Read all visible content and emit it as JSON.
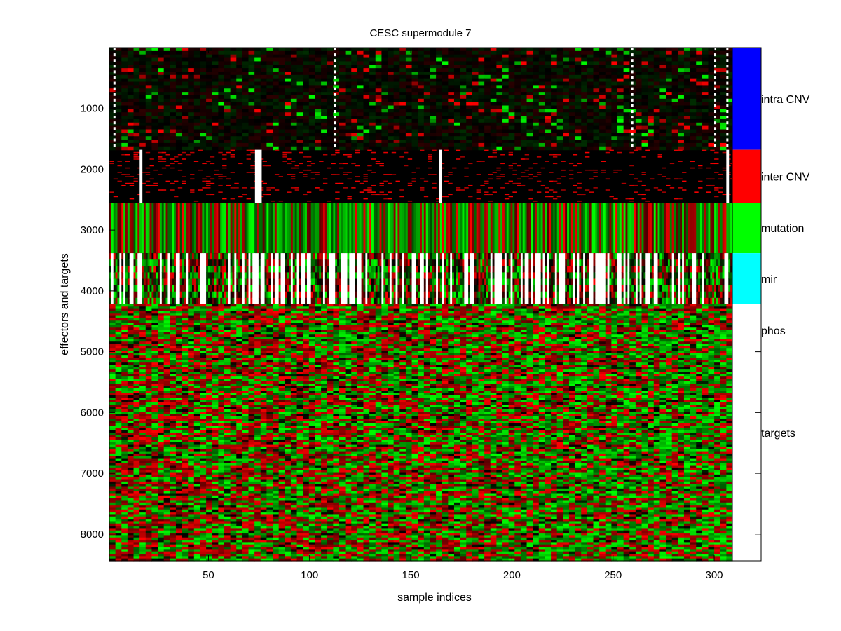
{
  "chart_data": {
    "type": "heatmap",
    "title": "CESC supermodule 7",
    "xlabel": "sample indices",
    "ylabel": "effectors and targets",
    "xlim": [
      1,
      309
    ],
    "ylim": [
      1,
      8440
    ],
    "y_direction": "reversed",
    "x_ticks": [
      50,
      100,
      150,
      200,
      250,
      300
    ],
    "y_ticks": [
      1000,
      2000,
      3000,
      4000,
      5000,
      6000,
      7000,
      8000
    ],
    "grid": false,
    "colors": {
      "low": "#00ff00",
      "mid": "#000000",
      "high": "#ff0000",
      "missing": "#ffffff"
    },
    "blocks": [
      {
        "label": "intra CNV",
        "row_start": 1,
        "row_end": 1680,
        "color": "#0000ff",
        "style": "sparse"
      },
      {
        "label": "inter CNV",
        "row_start": 1680,
        "row_end": 2550,
        "color": "#ff0000",
        "style": "sparse_red"
      },
      {
        "label": "mutation",
        "row_start": 2550,
        "row_end": 3380,
        "color": "#00ff00",
        "style": "columns"
      },
      {
        "label": "mir",
        "row_start": 3380,
        "row_end": 4220,
        "color": "#00ffff",
        "style": "blocky"
      },
      {
        "label": "phos",
        "row_start": 4220,
        "row_end": 5070,
        "color": "#ffff00",
        "style": "none"
      },
      {
        "label": "targets",
        "row_start": 4220,
        "row_end": 8440,
        "color": "#ffffff",
        "style": "dense"
      }
    ],
    "legend_labels": [
      "intra CNV",
      "inter CNV",
      "mutation",
      "mir",
      "phos",
      "targets"
    ]
  }
}
